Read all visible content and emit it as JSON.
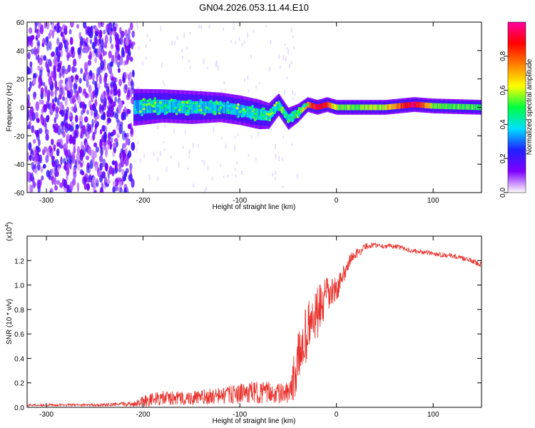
{
  "title": "GN04.2026.053.11.44.E10",
  "chart_data": [
    {
      "type": "heatmap",
      "panel": "spectrogram",
      "xlabel": "Height of straight line (km)",
      "ylabel": "Frequency (Hz)",
      "xlim": [
        -320,
        150
      ],
      "ylim": [
        -60,
        60
      ],
      "xticks": [
        -300,
        -200,
        -100,
        0,
        100
      ],
      "yticks": [
        -60,
        -40,
        -20,
        0,
        20,
        40,
        60
      ],
      "colorbar": {
        "label": "Normalized spectral amplitude",
        "range": [
          0.0,
          1.0
        ],
        "ticks": [
          0.0,
          0.2,
          0.4,
          0.6,
          0.8
        ],
        "colors": [
          "#ffffff",
          "#8000ff",
          "#2020ff",
          "#00e0ff",
          "#00ff40",
          "#ffff00",
          "#ff8000",
          "#ff0000",
          "#ff00a0"
        ]
      },
      "noise_region_km": [
        -320,
        -210
      ],
      "signal_track": [
        {
          "x": -210,
          "f": 0,
          "w": 10,
          "a": 0.35
        },
        {
          "x": -180,
          "f": 1,
          "w": 9,
          "a": 0.38
        },
        {
          "x": -150,
          "f": 0,
          "w": 9,
          "a": 0.36
        },
        {
          "x": -120,
          "f": 0,
          "w": 8,
          "a": 0.35
        },
        {
          "x": -100,
          "f": -2,
          "w": 8,
          "a": 0.38
        },
        {
          "x": -80,
          "f": -5,
          "w": 8,
          "a": 0.4
        },
        {
          "x": -70,
          "f": -6,
          "w": 7,
          "a": 0.38
        },
        {
          "x": -60,
          "f": 2,
          "w": 6,
          "a": 0.45
        },
        {
          "x": -50,
          "f": -8,
          "w": 6,
          "a": 0.42
        },
        {
          "x": -40,
          "f": -4,
          "w": 5,
          "a": 0.55
        },
        {
          "x": -30,
          "f": 2,
          "w": 4,
          "a": 0.75
        },
        {
          "x": -20,
          "f": 0,
          "w": 4,
          "a": 0.9
        },
        {
          "x": -10,
          "f": 2,
          "w": 4,
          "a": 0.85
        },
        {
          "x": 0,
          "f": 0,
          "w": 4,
          "a": 0.55
        },
        {
          "x": 20,
          "f": 0,
          "w": 4,
          "a": 0.55
        },
        {
          "x": 50,
          "f": 0,
          "w": 4,
          "a": 0.6
        },
        {
          "x": 80,
          "f": 2,
          "w": 4,
          "a": 0.95
        },
        {
          "x": 100,
          "f": 1,
          "w": 4,
          "a": 0.55
        },
        {
          "x": 150,
          "f": 0,
          "w": 4,
          "a": 0.5
        }
      ]
    },
    {
      "type": "line",
      "panel": "snr",
      "xlabel": "Height of straight line (km)",
      "ylabel": "SNR (10 * v/v)",
      "yscale_label": "(x10",
      "yscale_exp": "4",
      "xlim": [
        -320,
        150
      ],
      "ylim": [
        0.0,
        1.4
      ],
      "xticks": [
        -300,
        -200,
        -100,
        0,
        100
      ],
      "yticks": [
        0.0,
        0.2,
        0.4,
        0.6,
        0.8,
        1.0,
        1.2
      ],
      "series": [
        {
          "name": "SNR",
          "color": "#e8302a",
          "x": [
            -320,
            -250,
            -210,
            -200,
            -180,
            -150,
            -120,
            -100,
            -90,
            -70,
            -55,
            -48,
            -44,
            -40,
            -35,
            -30,
            -25,
            -20,
            -15,
            -10,
            -5,
            0,
            5,
            10,
            15,
            20,
            25,
            30,
            40,
            50,
            60,
            70,
            80,
            90,
            100,
            110,
            120,
            130,
            140,
            150
          ],
          "values": [
            0.02,
            0.02,
            0.03,
            0.06,
            0.08,
            0.08,
            0.1,
            0.12,
            0.13,
            0.13,
            0.12,
            0.12,
            0.25,
            0.4,
            0.55,
            0.65,
            0.72,
            0.78,
            0.85,
            0.92,
            0.95,
            0.97,
            1.05,
            1.15,
            1.22,
            1.26,
            1.28,
            1.32,
            1.33,
            1.32,
            1.32,
            1.3,
            1.28,
            1.27,
            1.26,
            1.25,
            1.24,
            1.22,
            1.2,
            1.17
          ],
          "noise": [
            0.01,
            0.01,
            0.02,
            0.05,
            0.06,
            0.06,
            0.07,
            0.08,
            0.09,
            0.09,
            0.08,
            0.1,
            0.2,
            0.22,
            0.24,
            0.24,
            0.22,
            0.22,
            0.2,
            0.16,
            0.14,
            0.1,
            0.08,
            0.07,
            0.05,
            0.04,
            0.03,
            0.03,
            0.02,
            0.02,
            0.02,
            0.02,
            0.02,
            0.02,
            0.02,
            0.02,
            0.02,
            0.02,
            0.02,
            0.02
          ]
        }
      ]
    }
  ]
}
